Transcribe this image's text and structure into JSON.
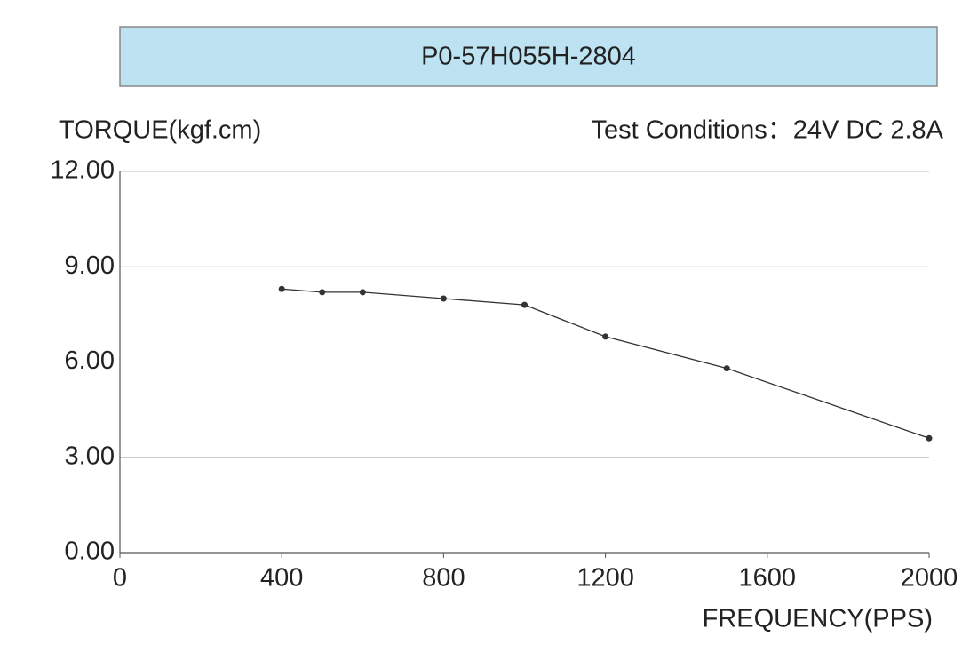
{
  "chart_data": {
    "type": "line",
    "title": "P0-57H055H-2804",
    "y_label": "TORQUE(kgf.cm)",
    "annotation": "Test Conditions：24V DC  2.8A",
    "x_label": "FREQUENCY(PPS)",
    "x": [
      400,
      500,
      600,
      800,
      1000,
      1200,
      1500,
      2000
    ],
    "series": [
      {
        "name": "Torque",
        "color": "#333333",
        "values": [
          8.3,
          8.2,
          8.2,
          8.0,
          7.8,
          6.8,
          5.8,
          3.6
        ]
      }
    ],
    "xlim": [
      0,
      2000
    ],
    "xticks": [
      0,
      400,
      800,
      1200,
      1600,
      2000
    ],
    "ylim": [
      0,
      12
    ],
    "yticks": [
      {
        "value": 0,
        "label": "0.00"
      },
      {
        "value": 3,
        "label": "3.00"
      },
      {
        "value": 6,
        "label": "6.00"
      },
      {
        "value": 9,
        "label": "9.00"
      },
      {
        "value": 12,
        "label": "12.00"
      }
    ],
    "grid": true
  }
}
